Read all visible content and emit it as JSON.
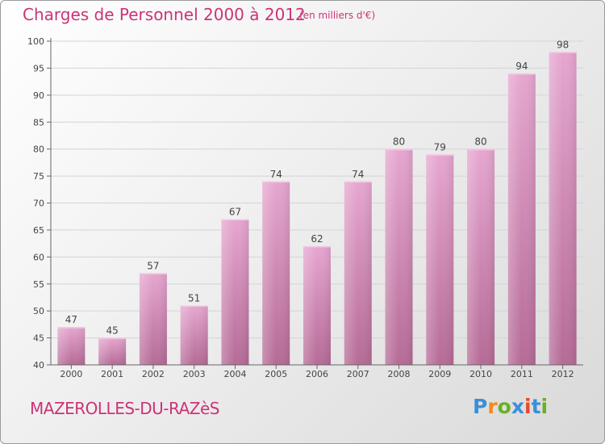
{
  "header": {
    "title": "Charges de Personnel 2000 à 2012",
    "subtitle": "(en milliers d'€)"
  },
  "footer": {
    "commune": "MAZEROLLES-DU-RAZèS",
    "logo_text": "Proxiti",
    "logo_colors": [
      "#3a8fd8",
      "#f08a1c",
      "#6ab023",
      "#3a8fd8",
      "#e84a2a",
      "#3a8fd8",
      "#6ab023"
    ]
  },
  "chart_data": {
    "type": "bar",
    "title": "Charges de Personnel 2000 à 2012",
    "subtitle": "(en milliers d'€)",
    "categories": [
      "2000",
      "2001",
      "2002",
      "2003",
      "2004",
      "2005",
      "2006",
      "2007",
      "2008",
      "2009",
      "2010",
      "2011",
      "2012"
    ],
    "values": [
      47,
      45,
      57,
      51,
      67,
      74,
      62,
      74,
      80,
      79,
      80,
      94,
      98
    ],
    "ylim": [
      40,
      100
    ],
    "yticks": [
      40,
      45,
      50,
      55,
      60,
      65,
      70,
      75,
      80,
      85,
      90,
      95,
      100
    ],
    "grid": true,
    "bar_color": "#d98ab8"
  }
}
